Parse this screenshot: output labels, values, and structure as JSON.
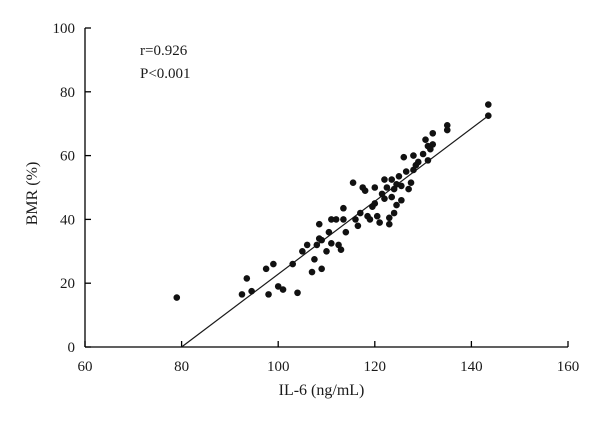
{
  "chart_data": {
    "type": "scatter",
    "title": "",
    "xlabel": "IL-6 (ng/mL)",
    "ylabel": "BMR (%)",
    "xlim": [
      60,
      160
    ],
    "ylim": [
      0,
      100
    ],
    "xticks": [
      60,
      80,
      100,
      120,
      140,
      160
    ],
    "yticks": [
      0,
      20,
      40,
      60,
      80,
      100
    ],
    "grid": false,
    "annotations": [
      "r=0.926",
      "P<0.001"
    ],
    "fit_line": {
      "x": [
        80,
        143.5
      ],
      "y": [
        0,
        72.5
      ]
    },
    "points": [
      [
        79,
        15.5
      ],
      [
        92.5,
        16.5
      ],
      [
        93.5,
        21.5
      ],
      [
        94.5,
        17.5
      ],
      [
        97.5,
        24.5
      ],
      [
        98,
        16.5
      ],
      [
        99,
        26
      ],
      [
        100,
        19
      ],
      [
        101,
        18
      ],
      [
        103,
        26
      ],
      [
        104,
        17
      ],
      [
        105,
        30
      ],
      [
        106,
        32
      ],
      [
        107,
        23.5
      ],
      [
        107.5,
        27.5
      ],
      [
        108,
        32
      ],
      [
        108.5,
        34
      ],
      [
        108.5,
        38.5
      ],
      [
        109,
        24.5
      ],
      [
        109,
        33.5
      ],
      [
        110,
        30
      ],
      [
        110.5,
        36
      ],
      [
        111,
        40
      ],
      [
        111,
        32.5
      ],
      [
        112,
        40
      ],
      [
        112.5,
        32
      ],
      [
        113,
        30.5
      ],
      [
        113.5,
        40
      ],
      [
        113.5,
        43.5
      ],
      [
        114,
        36
      ],
      [
        115.5,
        51.5
      ],
      [
        116,
        40
      ],
      [
        116.5,
        38
      ],
      [
        117,
        42
      ],
      [
        117.5,
        50
      ],
      [
        118,
        49
      ],
      [
        118.5,
        41
      ],
      [
        119,
        40
      ],
      [
        119.5,
        44
      ],
      [
        120,
        50
      ],
      [
        120,
        45
      ],
      [
        120.5,
        41
      ],
      [
        121,
        39
      ],
      [
        121.5,
        48
      ],
      [
        122,
        52.5
      ],
      [
        122,
        46.5
      ],
      [
        122.5,
        50
      ],
      [
        123,
        40.5
      ],
      [
        123,
        38.5
      ],
      [
        123.5,
        52.5
      ],
      [
        123.5,
        47
      ],
      [
        124,
        42
      ],
      [
        124,
        49.5
      ],
      [
        124.5,
        44.5
      ],
      [
        124.5,
        51
      ],
      [
        125,
        53.5
      ],
      [
        125.5,
        46
      ],
      [
        125.5,
        50.5
      ],
      [
        126,
        59.5
      ],
      [
        126.5,
        55
      ],
      [
        127,
        49.5
      ],
      [
        127.5,
        51.5
      ],
      [
        128,
        55.5
      ],
      [
        128,
        60
      ],
      [
        128.5,
        57
      ],
      [
        129,
        58
      ],
      [
        130,
        60.5
      ],
      [
        130.5,
        65
      ],
      [
        131,
        63
      ],
      [
        131,
        58.5
      ],
      [
        131.5,
        62
      ],
      [
        132,
        67
      ],
      [
        132,
        63.5
      ],
      [
        135,
        69.5
      ],
      [
        135,
        68
      ],
      [
        143.5,
        76
      ],
      [
        143.5,
        72.5
      ]
    ]
  }
}
